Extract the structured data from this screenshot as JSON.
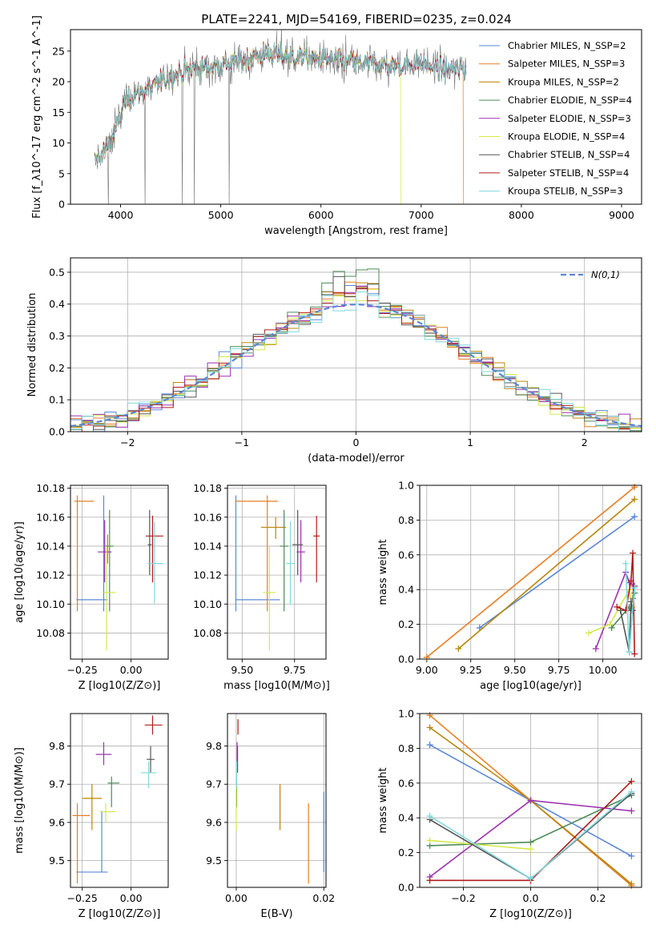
{
  "figure_title": "PLATE=2241, MJD=54169, FIBERID=0235, z=0.024",
  "colors": [
    "#5b87d8",
    "#e67e22",
    "#b8860b",
    "#4d8a5a",
    "#9b30b0",
    "#d4e84a",
    "#555555",
    "#b01c1c",
    "#7fd8dc"
  ],
  "chart_data": [
    {
      "id": "spectrum",
      "type": "line",
      "title": "PLATE=2241, MJD=54169, FIBERID=0235, z=0.024",
      "xlabel": "wavelength [Angstrom, rest frame]",
      "ylabel": "Flux [f_λ10^-17 erg cm^-2 s^-1 A^-1]",
      "xlim": [
        3500,
        9200
      ],
      "ylim": [
        0,
        28.5
      ],
      "xticks": [
        4000,
        5000,
        6000,
        7000,
        8000,
        9000
      ],
      "yticks": [
        0,
        5,
        10,
        15,
        20,
        25
      ],
      "grid": false,
      "legend_position": "top-right",
      "data_x_range": [
        3740,
        7450
      ],
      "series": [
        {
          "name": "Chabrier MILES, N_SSP=2"
        },
        {
          "name": "Salpeter MILES, N_SSP=3"
        },
        {
          "name": "Kroupa MILES, N_SSP=2"
        },
        {
          "name": "Chabrier ELODIE, N_SSP=4"
        },
        {
          "name": "Salpeter ELODIE, N_SSP=3"
        },
        {
          "name": "Kroupa ELODIE, N_SSP=4"
        },
        {
          "name": "Chabrier STELIB, N_SSP=4"
        },
        {
          "name": "Salpeter STELIB, N_SSP=4"
        },
        {
          "name": "Kroupa STELIB, N_SSP=3"
        }
      ],
      "continuum_points": [
        [
          3740,
          7
        ],
        [
          3850,
          9
        ],
        [
          3950,
          12
        ],
        [
          4050,
          17
        ],
        [
          4150,
          18
        ],
        [
          4300,
          19
        ],
        [
          4500,
          21
        ],
        [
          4700,
          22
        ],
        [
          4900,
          22.5
        ],
        [
          5100,
          23
        ],
        [
          5300,
          24
        ],
        [
          5500,
          24.5
        ],
        [
          5800,
          24
        ],
        [
          6100,
          23.5
        ],
        [
          6500,
          23
        ],
        [
          6800,
          22.5
        ],
        [
          7000,
          23
        ],
        [
          7200,
          22
        ],
        [
          7400,
          22
        ]
      ]
    },
    {
      "id": "residuals",
      "type": "step",
      "xlabel": "(data-model)/error",
      "ylabel": "Normed distribution",
      "xlim": [
        -2.5,
        2.5
      ],
      "ylim": [
        0,
        0.545
      ],
      "xticks": [
        -2,
        -1,
        0,
        1,
        2
      ],
      "yticks": [
        0.0,
        0.1,
        0.2,
        0.3,
        0.4,
        0.5
      ],
      "grid": true,
      "legend_position": "top-right",
      "legend": "N(0,1)",
      "bin_width": 0.1,
      "peak_values": [
        0.5,
        0.48,
        0.47,
        0.52,
        0.46,
        0.45,
        0.49,
        0.47,
        0.44
      ],
      "normal_curve": {
        "mean": 0,
        "sigma": 1
      }
    },
    {
      "id": "age-vs-Z",
      "type": "errorbar",
      "xlabel": "Z [log10(Z/Z⊙)]",
      "ylabel": "age [log10(age/yr)]",
      "xlim": [
        -0.31,
        0.19
      ],
      "ylim": [
        10.062,
        10.182
      ],
      "xticks": [
        -0.25,
        0.0
      ],
      "yticks": [
        10.08,
        10.1,
        10.12,
        10.14,
        10.16,
        10.18
      ],
      "grid": true,
      "points": [
        {
          "x": -0.14,
          "y": 10.103,
          "xlo": -0.28,
          "xhi": -0.12,
          "ylo": 10.095,
          "yhi": 10.175
        },
        {
          "x": -0.275,
          "y": 10.171,
          "xlo": -0.29,
          "xhi": -0.19,
          "ylo": 10.095,
          "yhi": 10.175
        },
        {
          "x": -0.12,
          "y": 10.14,
          "xlo": -0.13,
          "xhi": -0.12,
          "ylo": 10.128,
          "yhi": 10.148
        },
        {
          "x": -0.11,
          "y": 10.14,
          "xlo": -0.13,
          "xhi": -0.09,
          "ylo": 10.095,
          "yhi": 10.165
        },
        {
          "x": -0.135,
          "y": 10.136,
          "xlo": -0.17,
          "xhi": -0.1,
          "ylo": 10.115,
          "yhi": 10.158
        },
        {
          "x": -0.125,
          "y": 10.108,
          "xlo": -0.14,
          "xhi": -0.08,
          "ylo": 10.068,
          "yhi": 10.14
        },
        {
          "x": 0.095,
          "y": 10.141,
          "xlo": 0.085,
          "xhi": 0.105,
          "ylo": 10.12,
          "yhi": 10.165
        },
        {
          "x": 0.11,
          "y": 10.147,
          "xlo": 0.075,
          "xhi": 0.165,
          "ylo": 10.115,
          "yhi": 10.161
        },
        {
          "x": 0.12,
          "y": 10.128,
          "xlo": 0.085,
          "xhi": 0.165,
          "ylo": 10.1,
          "yhi": 10.157
        }
      ]
    },
    {
      "id": "age-vs-mass",
      "type": "errorbar",
      "xlabel": "mass [log10(M/M⊙)]",
      "ylabel": "",
      "xlim": [
        9.43,
        9.9
      ],
      "ylim": [
        10.062,
        10.182
      ],
      "xticks": [
        9.5,
        9.75
      ],
      "yticks": [
        10.08,
        10.1,
        10.12,
        10.14,
        10.16,
        10.18
      ],
      "grid": true,
      "points": [
        {
          "x": 9.47,
          "y": 10.103,
          "xlo": 9.47,
          "xhi": 9.68,
          "ylo": 10.095,
          "yhi": 10.175
        },
        {
          "x": 9.62,
          "y": 10.171,
          "xlo": 9.47,
          "xhi": 9.67,
          "ylo": 10.095,
          "yhi": 10.175
        },
        {
          "x": 9.66,
          "y": 10.153,
          "xlo": 9.59,
          "xhi": 9.71,
          "ylo": 10.145,
          "yhi": 10.16
        },
        {
          "x": 9.7,
          "y": 10.14,
          "xlo": 9.68,
          "xhi": 9.72,
          "ylo": 10.095,
          "yhi": 10.165
        },
        {
          "x": 9.78,
          "y": 10.136,
          "xlo": 9.76,
          "xhi": 9.8,
          "ylo": 10.115,
          "yhi": 10.158
        },
        {
          "x": 9.63,
          "y": 10.108,
          "xlo": 9.6,
          "xhi": 9.66,
          "ylo": 10.068,
          "yhi": 10.14
        },
        {
          "x": 9.765,
          "y": 10.141,
          "xlo": 9.74,
          "xhi": 9.79,
          "ylo": 10.12,
          "yhi": 10.165
        },
        {
          "x": 9.855,
          "y": 10.147,
          "xlo": 9.84,
          "xhi": 9.87,
          "ylo": 10.115,
          "yhi": 10.161
        },
        {
          "x": 9.73,
          "y": 10.128,
          "xlo": 9.71,
          "xhi": 9.75,
          "ylo": 10.1,
          "yhi": 10.157
        }
      ]
    },
    {
      "id": "massweight-vs-age",
      "type": "line",
      "xlabel": "age [log10(age/yr)]",
      "ylabel": "mass weight",
      "xlim": [
        8.96,
        10.22
      ],
      "ylim": [
        0.0,
        1.0
      ],
      "xticks": [
        9.0,
        9.25,
        9.5,
        9.75,
        10.0
      ],
      "yticks": [
        0.0,
        0.2,
        0.4,
        0.6,
        0.8,
        1.0
      ],
      "grid": true,
      "series": [
        {
          "points": [
            [
              9.3,
              0.18
            ],
            [
              10.18,
              0.82
            ]
          ]
        },
        {
          "points": [
            [
              9.0,
              0.01
            ],
            [
              10.18,
              0.99
            ]
          ]
        },
        {
          "points": [
            [
              9.18,
              0.06
            ],
            [
              10.18,
              0.92
            ]
          ]
        },
        {
          "points": [
            [
              10.05,
              0.18
            ],
            [
              10.15,
              0.3
            ],
            [
              10.16,
              0.28
            ],
            [
              10.17,
              0.35
            ],
            [
              10.18,
              0.38
            ]
          ]
        },
        {
          "points": [
            [
              9.96,
              0.06
            ],
            [
              10.13,
              0.5
            ],
            [
              10.15,
              0.44
            ],
            [
              10.18,
              0.42
            ]
          ]
        },
        {
          "points": [
            [
              9.92,
              0.15
            ],
            [
              10.04,
              0.2
            ],
            [
              10.15,
              0.4
            ],
            [
              10.17,
              0.3
            ]
          ]
        },
        {
          "points": [
            [
              10.1,
              0.28
            ],
            [
              10.15,
              0.04
            ],
            [
              10.16,
              0.33
            ],
            [
              10.17,
              0.28
            ]
          ]
        },
        {
          "points": [
            [
              10.08,
              0.3
            ],
            [
              10.13,
              0.28
            ],
            [
              10.16,
              0.45
            ],
            [
              10.17,
              0.61
            ],
            [
              10.18,
              0.03
            ]
          ]
        },
        {
          "points": [
            [
              10.13,
              0.55
            ],
            [
              10.15,
              0.04
            ],
            [
              10.18,
              0.41
            ]
          ]
        }
      ]
    },
    {
      "id": "mass-vs-Z",
      "type": "errorbar",
      "xlabel": "Z [log10(Z/Z⊙)]",
      "ylabel": "mass [log10(M/M⊙)]",
      "xlim": [
        -0.31,
        0.19
      ],
      "ylim": [
        9.43,
        9.885
      ],
      "xticks": [
        -0.25,
        0.0
      ],
      "yticks": [
        9.5,
        9.6,
        9.7,
        9.8
      ],
      "grid": true,
      "points": [
        {
          "x": -0.15,
          "y": 9.47,
          "xlo": -0.28,
          "xhi": -0.12,
          "ylo": 9.47,
          "yhi": 9.63
        },
        {
          "x": -0.275,
          "y": 9.618,
          "xlo": -0.3,
          "xhi": -0.21,
          "ylo": 9.44,
          "yhi": 9.65
        },
        {
          "x": -0.2,
          "y": 9.663,
          "xlo": -0.25,
          "xhi": -0.15,
          "ylo": 9.58,
          "yhi": 9.7
        },
        {
          "x": -0.1,
          "y": 9.703,
          "xlo": -0.12,
          "xhi": -0.06,
          "ylo": 9.64,
          "yhi": 9.72
        },
        {
          "x": -0.14,
          "y": 9.778,
          "xlo": -0.18,
          "xhi": -0.1,
          "ylo": 9.75,
          "yhi": 9.81
        },
        {
          "x": -0.13,
          "y": 9.628,
          "xlo": -0.16,
          "xhi": -0.08,
          "ylo": 9.6,
          "yhi": 9.65
        },
        {
          "x": 0.1,
          "y": 9.765,
          "xlo": 0.08,
          "xhi": 0.12,
          "ylo": 9.73,
          "yhi": 9.8
        },
        {
          "x": 0.11,
          "y": 9.855,
          "xlo": 0.07,
          "xhi": 0.16,
          "ylo": 9.83,
          "yhi": 9.88
        },
        {
          "x": 0.09,
          "y": 9.73,
          "xlo": 0.05,
          "xhi": 0.13,
          "ylo": 9.69,
          "yhi": 9.76
        }
      ]
    },
    {
      "id": "mass-vs-EBV",
      "type": "errorbar",
      "xlabel": "E(B-V)",
      "ylabel": "",
      "xlim": [
        -0.002,
        0.0205
      ],
      "ylim": [
        9.43,
        9.885
      ],
      "xticks": [
        0.0,
        0.02
      ],
      "xtick_labels": [
        "0.00",
        "0.02"
      ],
      "yticks": [
        9.5,
        9.6,
        9.7,
        9.8
      ],
      "grid": true,
      "points": [
        {
          "x": 0.02,
          "y": 9.6,
          "xlo": 0.02,
          "xhi": 0.02,
          "ylo": 9.47,
          "yhi": 9.68
        },
        {
          "x": 0.0165,
          "y": 9.55,
          "xlo": 0.0165,
          "xhi": 0.0165,
          "ylo": 9.44,
          "yhi": 9.65
        },
        {
          "x": 0.01,
          "y": 9.64,
          "xlo": 0.01,
          "xhi": 0.01,
          "ylo": 9.58,
          "yhi": 9.7
        },
        {
          "x": 0.0001,
          "y": 9.7,
          "xlo": 0.0001,
          "xhi": 0.0001,
          "ylo": 9.64,
          "yhi": 9.72
        },
        {
          "x": 0.0002,
          "y": 9.78,
          "xlo": 0.0002,
          "xhi": 0.0002,
          "ylo": 9.75,
          "yhi": 9.81
        },
        {
          "x": 0.0,
          "y": 9.63,
          "xlo": 0.0,
          "xhi": 0.0,
          "ylo": 9.58,
          "yhi": 9.7
        },
        {
          "x": 0.0003,
          "y": 9.76,
          "xlo": 0.0003,
          "xhi": 0.0003,
          "ylo": 9.73,
          "yhi": 9.8
        },
        {
          "x": 0.0004,
          "y": 9.85,
          "xlo": 0.0004,
          "xhi": 0.0004,
          "ylo": 9.83,
          "yhi": 9.87
        },
        {
          "x": 0.0001,
          "y": 9.72,
          "xlo": 0.0001,
          "xhi": 0.0001,
          "ylo": 9.69,
          "yhi": 9.76
        }
      ]
    },
    {
      "id": "massweight-vs-Z",
      "type": "line",
      "xlabel": "Z [log10(Z/Z⊙)]",
      "ylabel": "mass weight",
      "xlim": [
        -0.33,
        0.33
      ],
      "ylim": [
        0.0,
        1.0
      ],
      "xticks": [
        -0.2,
        0.0,
        0.2
      ],
      "yticks": [
        0.0,
        0.2,
        0.4,
        0.6,
        0.8,
        1.0
      ],
      "grid": true,
      "series": [
        {
          "points": [
            [
              -0.3,
              0.82
            ],
            [
              0.0,
              0.5
            ],
            [
              0.3,
              0.18
            ]
          ]
        },
        {
          "points": [
            [
              -0.3,
              0.99
            ],
            [
              0.0,
              0.5
            ],
            [
              0.3,
              0.01
            ]
          ]
        },
        {
          "points": [
            [
              -0.3,
              0.92
            ],
            [
              0.0,
              0.5
            ],
            [
              0.3,
              0.02
            ]
          ]
        },
        {
          "points": [
            [
              -0.3,
              0.24
            ],
            [
              0.0,
              0.26
            ],
            [
              0.3,
              0.53
            ]
          ]
        },
        {
          "points": [
            [
              -0.3,
              0.06
            ],
            [
              0.0,
              0.5
            ],
            [
              0.3,
              0.44
            ]
          ]
        },
        {
          "points": [
            [
              -0.3,
              0.27
            ],
            [
              0.0,
              0.22
            ]
          ]
        },
        {
          "points": [
            [
              -0.3,
              0.39
            ],
            [
              0.0,
              0.05
            ],
            [
              0.3,
              0.54
            ]
          ]
        },
        {
          "points": [
            [
              -0.3,
              0.04
            ],
            [
              0.0,
              0.04
            ],
            [
              0.3,
              0.61
            ]
          ]
        },
        {
          "points": [
            [
              -0.3,
              0.41
            ],
            [
              0.0,
              0.05
            ],
            [
              0.3,
              0.55
            ]
          ]
        }
      ]
    }
  ]
}
